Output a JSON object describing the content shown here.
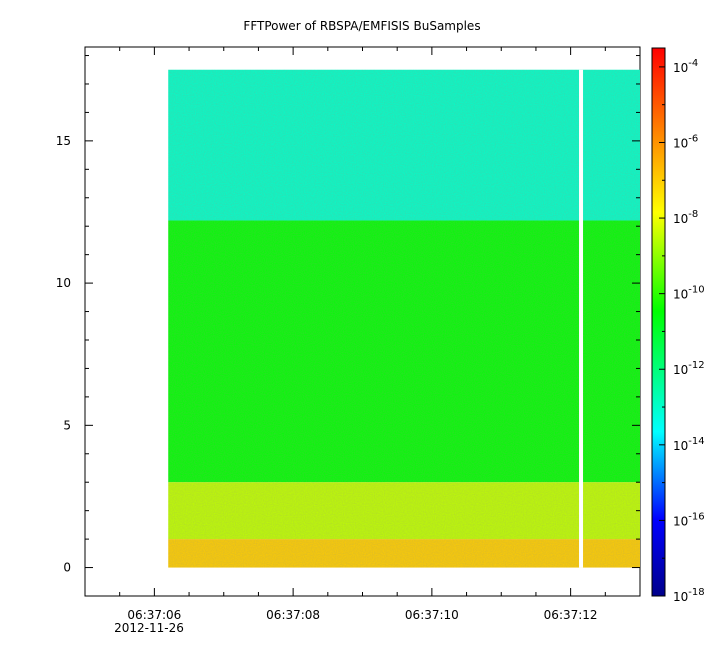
{
  "chart_data": {
    "type": "heatmap",
    "title": "FFTPower of RBSPA/EMFISIS  BuSamples",
    "xlabel": "",
    "ylabel": "",
    "x_axis": {
      "unit": "time",
      "date_label": "2012-11-26",
      "range": [
        "06:37:05.0",
        "06:37:13.0"
      ],
      "major_ticks": [
        "06:37:06",
        "06:37:08",
        "06:37:10",
        "06:37:12"
      ],
      "minor_step_seconds": 0.5
    },
    "y_axis": {
      "range": [
        -1,
        18.3
      ],
      "ticks": [
        0,
        5,
        10,
        15
      ],
      "minor_step": 1
    },
    "colorbar": {
      "scale": "log",
      "range": [
        "1e-18",
        "1e-3.5"
      ],
      "tick_labels": [
        {
          "base": "10",
          "exp": "-4"
        },
        {
          "base": "10",
          "exp": "-6"
        },
        {
          "base": "10",
          "exp": "-8"
        },
        {
          "base": "10",
          "exp": "-10"
        },
        {
          "base": "10",
          "exp": "-12"
        },
        {
          "base": "10",
          "exp": "-14"
        },
        {
          "base": "10",
          "exp": "-16"
        },
        {
          "base": "10",
          "exp": "-18"
        }
      ],
      "colormap": [
        "#00008b",
        "#0000ff",
        "#00ffff",
        "#00ff00",
        "#ffff00",
        "#ff8000",
        "#ff0000"
      ]
    },
    "data_extent": {
      "time_start": "06:37:06.2",
      "time_end": "06:37:13.0",
      "y_max": 17.5
    },
    "data_gap": {
      "time": "06:37:12.15"
    },
    "power_bands": [
      {
        "y_from": 12.2,
        "y_to": 17.5,
        "log10_power": -13.0
      },
      {
        "y_from": 3.0,
        "y_to": 12.2,
        "log10_power": -10.5
      },
      {
        "y_from": 1.0,
        "y_to": 3.0,
        "log10_power": -8.5
      },
      {
        "y_from": 0.0,
        "y_to": 1.0,
        "log10_power": -7.0
      }
    ]
  }
}
